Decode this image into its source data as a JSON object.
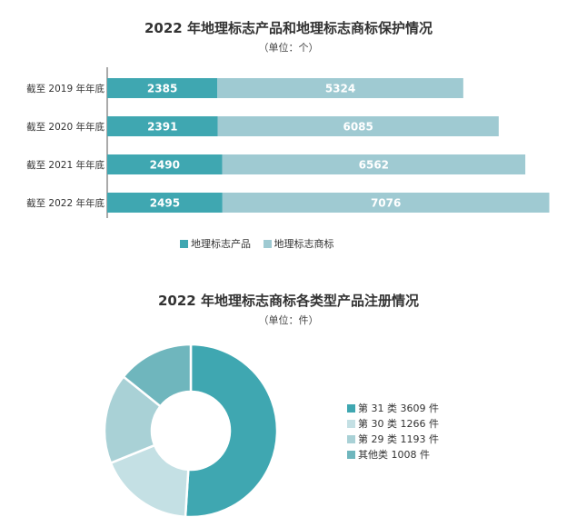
{
  "charts": {
    "bar": {
      "title": "2022 年地理标志产品和地理标志商标保护情况",
      "subtitle": "（单位：个）"
    },
    "donut": {
      "title": "2022 年地理标志商标各类型产品注册情况",
      "subtitle": "（单位：件）",
      "legend": [
        "第 31 类  3609 件",
        "第 30 类  1266 件",
        "第 29 类  1193 件",
        "其他类    1008 件"
      ]
    }
  },
  "chart_data": [
    {
      "type": "bar",
      "stacked": true,
      "orientation": "horizontal",
      "title": "2022 年地理标志产品和地理标志商标保护情况",
      "subtitle": "（单位：个）",
      "categories": [
        "截至 2019 年年底",
        "截至 2020 年年底",
        "截至 2021 年年底",
        "截至 2022 年年底"
      ],
      "series": [
        {
          "name": "地理标志产品",
          "values": [
            2385,
            2391,
            2490,
            2495
          ],
          "color": "#3fa7b1"
        },
        {
          "name": "地理标志商标",
          "values": [
            5324,
            6085,
            6562,
            7076
          ],
          "color": "#9fcad2"
        }
      ],
      "legend_position": "bottom",
      "grid": false
    },
    {
      "type": "pie",
      "variant": "donut",
      "title": "2022 年地理标志商标各类型产品注册情况",
      "subtitle": "（单位：件）",
      "categories": [
        "第 31 类",
        "第 30 类",
        "第 29 类",
        "其他类"
      ],
      "values": [
        3609,
        1266,
        1193,
        1008
      ],
      "colors": [
        "#3fa7b1",
        "#c4e0e4",
        "#a9d1d6",
        "#6fb6bd"
      ],
      "legend_position": "right"
    }
  ]
}
